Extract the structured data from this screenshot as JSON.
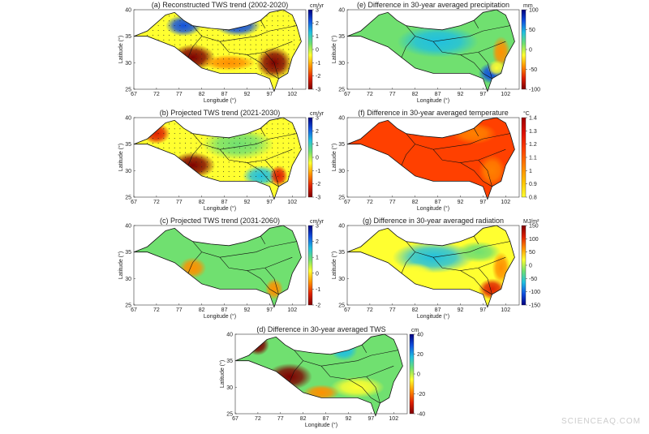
{
  "panels": [
    {
      "title": "(a) Reconstructed TWS trend (2002-2020)",
      "xlabel": "Longitude (°)",
      "ylabel": "Latitude (°)",
      "xlim": [
        67,
        105
      ],
      "ylim": [
        25,
        40
      ],
      "xticks": [
        67,
        72,
        77,
        82,
        87,
        92,
        97,
        102
      ],
      "yticks": [
        25,
        30,
        35,
        40
      ],
      "colorbar": {
        "unit": "cm/yr",
        "lim": [
          -3,
          3
        ],
        "ticks": [
          -3,
          -2,
          -1,
          0,
          1,
          2,
          3
        ],
        "colormap": [
          "#7f0000",
          "#e02000",
          "#ff9000",
          "#ffff30",
          "#70e070",
          "#20c0e0",
          "#1050e0",
          "#00007f"
        ]
      }
    },
    {
      "title": "(b) Projected TWS trend (2021-2030)",
      "xlabel": "Longitude (°)",
      "ylabel": "Latitude (°)",
      "xlim": [
        67,
        105
      ],
      "ylim": [
        25,
        40
      ],
      "xticks": [
        67,
        72,
        77,
        82,
        87,
        92,
        97,
        102
      ],
      "yticks": [
        25,
        30,
        35,
        40
      ],
      "colorbar": {
        "unit": "cm/yr",
        "lim": [
          -3,
          3
        ],
        "ticks": [
          -3,
          -2,
          -1,
          0,
          1,
          2,
          3
        ],
        "colormap": [
          "#7f0000",
          "#e02000",
          "#ff9000",
          "#ffff30",
          "#70e070",
          "#20c0e0",
          "#1050e0",
          "#00007f"
        ]
      }
    },
    {
      "title": "(c) Projected TWS trend (2031-2060)",
      "xlabel": "Longitude (°)",
      "ylabel": "Latitude (°)",
      "xlim": [
        67,
        105
      ],
      "ylim": [
        25,
        40
      ],
      "xticks": [
        67,
        72,
        77,
        82,
        87,
        92,
        97,
        102
      ],
      "yticks": [
        25,
        30,
        35,
        40
      ],
      "colorbar": {
        "unit": "cm/yr",
        "lim": [
          -2,
          3
        ],
        "ticks": [
          -2,
          -1,
          0,
          1,
          2,
          3
        ],
        "colormap": [
          "#7f0000",
          "#e02000",
          "#ff9000",
          "#ffff30",
          "#70e070",
          "#20c0e0",
          "#1050e0",
          "#00007f"
        ]
      }
    },
    {
      "title": "(d) Difference in 30-year averaged TWS",
      "xlabel": "Longitude (°)",
      "ylabel": "Latitude (°)",
      "xlim": [
        67,
        105
      ],
      "ylim": [
        25,
        40
      ],
      "xticks": [
        67,
        72,
        77,
        82,
        87,
        92,
        97,
        102
      ],
      "yticks": [
        25,
        30,
        35,
        40
      ],
      "colorbar": {
        "unit": "cm",
        "lim": [
          -40,
          40
        ],
        "ticks": [
          -40,
          -20,
          0,
          20,
          40
        ],
        "colormap": [
          "#7f0000",
          "#e02000",
          "#ff9000",
          "#ffff30",
          "#70e070",
          "#20c0e0",
          "#1050e0",
          "#00007f"
        ]
      }
    },
    {
      "title": "(e) Difference in 30-year averaged precipitation",
      "xlabel": "Longitude (°)",
      "ylabel": "Latitude (°)",
      "xlim": [
        67,
        105
      ],
      "ylim": [
        25,
        40
      ],
      "xticks": [
        67,
        72,
        77,
        82,
        87,
        92,
        97,
        102
      ],
      "yticks": [
        25,
        30,
        35,
        40
      ],
      "colorbar": {
        "unit": "mm",
        "lim": [
          -100,
          100
        ],
        "ticks": [
          -100,
          -50,
          0,
          50,
          100
        ],
        "colormap": [
          "#7f0000",
          "#e02000",
          "#ff9000",
          "#ffff30",
          "#70e070",
          "#20c0e0",
          "#1050e0",
          "#00007f"
        ]
      }
    },
    {
      "title": "(f) Difference in 30-year averaged temperature",
      "xlabel": "Longitude (°)",
      "ylabel": "Latitude (°)",
      "xlim": [
        67,
        105
      ],
      "ylim": [
        25,
        40
      ],
      "xticks": [
        67,
        72,
        77,
        82,
        87,
        92,
        97,
        102
      ],
      "yticks": [
        25,
        30,
        35,
        40
      ],
      "colorbar": {
        "unit": "°C",
        "lim": [
          0.8,
          1.4
        ],
        "ticks": [
          0.8,
          0.9,
          1,
          1.1,
          1.2,
          1.3,
          1.4
        ],
        "colormap": [
          "#ffff30",
          "#ffc000",
          "#ff8000",
          "#ff4000",
          "#e01000",
          "#a00000"
        ]
      }
    },
    {
      "title": "(g) Difference in 30-year averaged radiation",
      "xlabel": "Longitude (°)",
      "ylabel": "Latitude (°)",
      "xlim": [
        67,
        105
      ],
      "ylim": [
        25,
        40
      ],
      "xticks": [
        67,
        72,
        77,
        82,
        87,
        92,
        97,
        102
      ],
      "yticks": [
        25,
        30,
        35,
        40
      ],
      "colorbar": {
        "unit": "MJ/m²",
        "lim": [
          -150,
          150
        ],
        "ticks": [
          -150,
          -100,
          -50,
          0,
          50,
          100,
          150
        ],
        "colormap": [
          "#00007f",
          "#1050e0",
          "#20c0e0",
          "#70e070",
          "#ffff30",
          "#ff9000",
          "#e02000",
          "#7f0000"
        ]
      }
    }
  ],
  "watermark": "SCIENCEAQ.COM"
}
